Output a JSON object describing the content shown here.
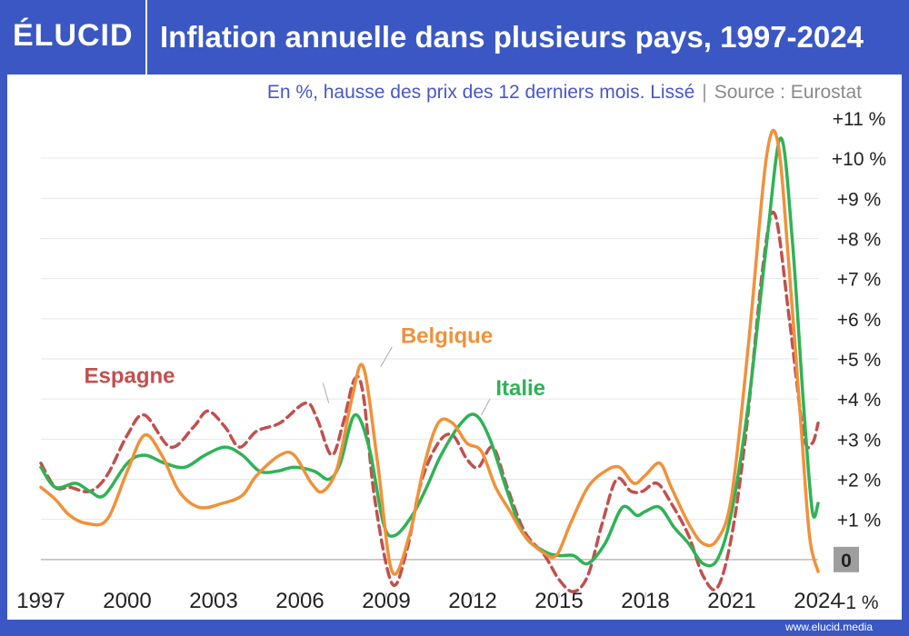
{
  "header": {
    "logo": "ÉLUCID",
    "title": "Inflation annuelle dans plusieurs pays, 1997-2024"
  },
  "subtitle": {
    "text": "En %, hausse des prix des 12 derniers mois. Lissé",
    "separator": "|",
    "source": "Source : Eurostat"
  },
  "footer": {
    "url": "www.elucid.media"
  },
  "colors": {
    "background": "#3a57c4",
    "espagne": "#c0504d",
    "belgique": "#f0913a",
    "italie": "#2fb257"
  },
  "chart_data": {
    "type": "line",
    "title": "Inflation annuelle dans plusieurs pays, 1997-2024",
    "xlabel": "",
    "ylabel": "",
    "xlim": [
      1997,
      2024
    ],
    "ylim": [
      -1,
      11
    ],
    "y_ticks": [
      {
        "value": 11,
        "label": "+11 %"
      },
      {
        "value": 10,
        "label": "+10 %"
      },
      {
        "value": 9,
        "label": "+9 %"
      },
      {
        "value": 8,
        "label": "+8 %"
      },
      {
        "value": 7,
        "label": "+7 %"
      },
      {
        "value": 6,
        "label": "+6 %"
      },
      {
        "value": 5,
        "label": "+5 %"
      },
      {
        "value": 4,
        "label": "+4 %"
      },
      {
        "value": 3,
        "label": "+3 %"
      },
      {
        "value": 2,
        "label": "+2 %"
      },
      {
        "value": 1,
        "label": "+1 %"
      },
      {
        "value": 0,
        "label": "0"
      },
      {
        "value": -1,
        "label": "-1 %"
      }
    ],
    "x_ticks": [
      {
        "value": 1997,
        "label": "1997"
      },
      {
        "value": 2000,
        "label": "2000"
      },
      {
        "value": 2003,
        "label": "2003"
      },
      {
        "value": 2006,
        "label": "2006"
      },
      {
        "value": 2009,
        "label": "2009"
      },
      {
        "value": 2012,
        "label": "2012"
      },
      {
        "value": 2015,
        "label": "2015"
      },
      {
        "value": 2018,
        "label": "2018"
      },
      {
        "value": 2021,
        "label": "2021"
      },
      {
        "value": 2024,
        "label": "2024"
      }
    ],
    "grid": true,
    "legend": "inline labels",
    "series": [
      {
        "name": "Espagne",
        "color": "#c0504d",
        "style": "dashed",
        "label_at": [
          1998.5,
          4.4
        ],
        "points": [
          [
            1997,
            2.4
          ],
          [
            1997.5,
            1.8
          ],
          [
            1998,
            1.8
          ],
          [
            1998.7,
            1.7
          ],
          [
            1999.3,
            2.1
          ],
          [
            2000,
            3.1
          ],
          [
            2000.6,
            3.6
          ],
          [
            2001.5,
            2.8
          ],
          [
            2002.3,
            3.3
          ],
          [
            2002.8,
            3.7
          ],
          [
            2003.4,
            3.3
          ],
          [
            2003.9,
            2.8
          ],
          [
            2004.5,
            3.2
          ],
          [
            2005.3,
            3.4
          ],
          [
            2006.2,
            3.9
          ],
          [
            2006.6,
            3.5
          ],
          [
            2007.1,
            2.6
          ],
          [
            2007.5,
            3.4
          ],
          [
            2007.9,
            4.5
          ],
          [
            2008.2,
            4.1
          ],
          [
            2008.6,
            1.5
          ],
          [
            2009.2,
            -0.6
          ],
          [
            2009.7,
            0.2
          ],
          [
            2010.2,
            1.9
          ],
          [
            2010.8,
            2.9
          ],
          [
            2011.3,
            3.1
          ],
          [
            2011.8,
            2.5
          ],
          [
            2012.2,
            2.3
          ],
          [
            2012.7,
            2.8
          ],
          [
            2013.2,
            1.8
          ],
          [
            2013.8,
            0.7
          ],
          [
            2014.5,
            0.1
          ],
          [
            2015.0,
            -0.5
          ],
          [
            2015.5,
            -0.8
          ],
          [
            2016.0,
            -0.4
          ],
          [
            2016.5,
            0.9
          ],
          [
            2017.0,
            2.0
          ],
          [
            2017.5,
            1.7
          ],
          [
            2017.9,
            1.7
          ],
          [
            2018.4,
            1.9
          ],
          [
            2018.9,
            1.4
          ],
          [
            2019.5,
            0.6
          ],
          [
            2020.0,
            -0.4
          ],
          [
            2020.5,
            -0.7
          ],
          [
            2021.0,
            0.6
          ],
          [
            2021.5,
            3.2
          ],
          [
            2022.1,
            7.4
          ],
          [
            2022.5,
            8.6
          ],
          [
            2023.0,
            6.0
          ],
          [
            2023.5,
            3.1
          ],
          [
            2023.8,
            2.9
          ],
          [
            2024.0,
            3.4
          ]
        ]
      },
      {
        "name": "Belgique",
        "color": "#f0913a",
        "style": "solid",
        "label_at": [
          2009.5,
          5.4
        ],
        "points": [
          [
            1997,
            1.8
          ],
          [
            1997.5,
            1.5
          ],
          [
            1998,
            1.1
          ],
          [
            1998.6,
            0.9
          ],
          [
            1999.3,
            1.0
          ],
          [
            2000,
            2.2
          ],
          [
            2000.6,
            3.1
          ],
          [
            2001.2,
            2.6
          ],
          [
            2001.8,
            1.7
          ],
          [
            2002.5,
            1.3
          ],
          [
            2003.3,
            1.4
          ],
          [
            2004.0,
            1.6
          ],
          [
            2004.5,
            2.1
          ],
          [
            2005.3,
            2.6
          ],
          [
            2005.8,
            2.6
          ],
          [
            2006.4,
            1.9
          ],
          [
            2006.8,
            1.7
          ],
          [
            2007.3,
            2.3
          ],
          [
            2007.8,
            4.0
          ],
          [
            2008.2,
            4.8
          ],
          [
            2008.7,
            2.4
          ],
          [
            2009.2,
            -0.3
          ],
          [
            2009.8,
            0.6
          ],
          [
            2010.3,
            2.3
          ],
          [
            2010.8,
            3.4
          ],
          [
            2011.3,
            3.4
          ],
          [
            2011.8,
            2.9
          ],
          [
            2012.3,
            2.7
          ],
          [
            2012.8,
            1.8
          ],
          [
            2013.3,
            1.2
          ],
          [
            2013.8,
            0.6
          ],
          [
            2014.4,
            0.2
          ],
          [
            2014.9,
            0.1
          ],
          [
            2015.4,
            0.9
          ],
          [
            2016.0,
            1.8
          ],
          [
            2016.6,
            2.2
          ],
          [
            2017.1,
            2.3
          ],
          [
            2017.6,
            1.9
          ],
          [
            2018.0,
            2.1
          ],
          [
            2018.5,
            2.4
          ],
          [
            2018.9,
            1.8
          ],
          [
            2019.5,
            0.9
          ],
          [
            2020.0,
            0.4
          ],
          [
            2020.5,
            0.5
          ],
          [
            2021.0,
            1.6
          ],
          [
            2021.6,
            5.5
          ],
          [
            2022.2,
            10.0
          ],
          [
            2022.6,
            10.4
          ],
          [
            2023.0,
            7.2
          ],
          [
            2023.4,
            3.4
          ],
          [
            2023.7,
            0.6
          ],
          [
            2024.0,
            -0.3
          ]
        ]
      },
      {
        "name": "Italie",
        "color": "#2fb257",
        "style": "solid",
        "label_at": [
          2012.8,
          4.1
        ],
        "points": [
          [
            1997,
            2.3
          ],
          [
            1997.5,
            1.8
          ],
          [
            1998.2,
            1.9
          ],
          [
            1998.7,
            1.7
          ],
          [
            1999.2,
            1.6
          ],
          [
            2000,
            2.4
          ],
          [
            2000.6,
            2.6
          ],
          [
            2001.3,
            2.4
          ],
          [
            2002.0,
            2.3
          ],
          [
            2002.7,
            2.6
          ],
          [
            2003.4,
            2.8
          ],
          [
            2004.0,
            2.6
          ],
          [
            2004.6,
            2.2
          ],
          [
            2005.2,
            2.2
          ],
          [
            2005.8,
            2.3
          ],
          [
            2006.5,
            2.2
          ],
          [
            2007.0,
            2.0
          ],
          [
            2007.4,
            2.4
          ],
          [
            2007.9,
            3.6
          ],
          [
            2008.4,
            2.8
          ],
          [
            2008.9,
            0.9
          ],
          [
            2009.3,
            0.6
          ],
          [
            2009.9,
            1.1
          ],
          [
            2010.4,
            1.8
          ],
          [
            2010.9,
            2.6
          ],
          [
            2011.6,
            3.4
          ],
          [
            2012.1,
            3.6
          ],
          [
            2012.6,
            3.0
          ],
          [
            2013.2,
            1.7
          ],
          [
            2013.8,
            0.6
          ],
          [
            2014.5,
            0.2
          ],
          [
            2015.0,
            0.1
          ],
          [
            2015.5,
            0.1
          ],
          [
            2016.0,
            -0.1
          ],
          [
            2016.6,
            0.4
          ],
          [
            2017.2,
            1.3
          ],
          [
            2017.7,
            1.1
          ],
          [
            2018.0,
            1.2
          ],
          [
            2018.5,
            1.3
          ],
          [
            2019.0,
            0.8
          ],
          [
            2019.5,
            0.4
          ],
          [
            2020.0,
            -0.1
          ],
          [
            2020.5,
            0.0
          ],
          [
            2021.0,
            1.2
          ],
          [
            2021.6,
            4.0
          ],
          [
            2022.2,
            7.8
          ],
          [
            2022.7,
            10.5
          ],
          [
            2023.1,
            8.0
          ],
          [
            2023.5,
            3.8
          ],
          [
            2023.8,
            1.2
          ],
          [
            2024.0,
            1.4
          ]
        ]
      }
    ]
  }
}
